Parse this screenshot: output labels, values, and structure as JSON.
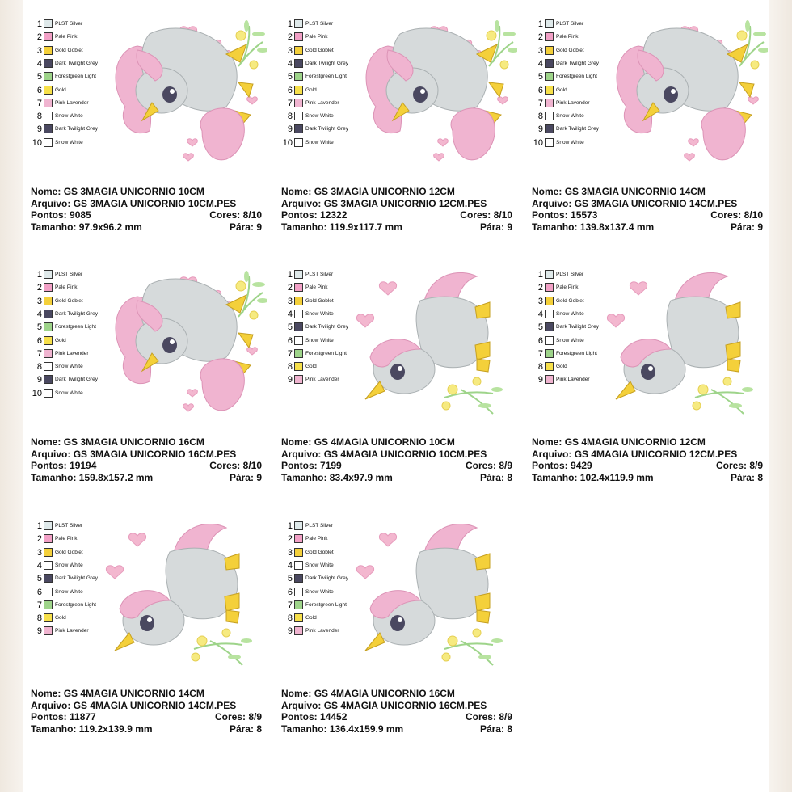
{
  "labels": {
    "nome": "Nome:",
    "arquivo": "Arquivo:",
    "pontos": "Pontos:",
    "tamanho": "Tamanho:",
    "cores": "Cores:",
    "para": "Pára:"
  },
  "colors": {
    "PLST Silver": "#dfe9ea",
    "Pale Pink": "#f2a0c6",
    "Gold Goblet": "#f4d03a",
    "Dark Twilight Grey": "#4a4860",
    "Forestgreen Light": "#9ed48a",
    "Gold": "#f7e04a",
    "Pink Lavender": "#f0b4d0",
    "Snow White": "#ffffff"
  },
  "palettes": {
    "p3": [
      "PLST Silver",
      "Pale Pink",
      "Gold Goblet",
      "Dark Twilight Grey",
      "Forestgreen Light",
      "Gold",
      "Pink Lavender",
      "Snow White",
      "Dark Twilight Grey",
      "Snow White"
    ],
    "p4": [
      "PLST Silver",
      "Pale Pink",
      "Gold Goblet",
      "Snow White",
      "Dark Twilight Grey",
      "Snow White",
      "Forestgreen Light",
      "Gold",
      "Pink Lavender"
    ]
  },
  "cards": [
    {
      "design": "unicorn-3",
      "palette": "p3",
      "nome": "GS 3MAGIA UNICORNIO 10CM",
      "arquivo": "GS 3MAGIA UNICORNIO 10CM.PES",
      "pontos": "9085",
      "cores": "8/10",
      "tamanho": "97.9x96.2 mm",
      "para": "9"
    },
    {
      "design": "unicorn-3",
      "palette": "p3",
      "nome": "GS 3MAGIA UNICORNIO 12CM",
      "arquivo": "GS 3MAGIA UNICORNIO 12CM.PES",
      "pontos": "12322",
      "cores": "8/10",
      "tamanho": "119.9x117.7 mm",
      "para": "9"
    },
    {
      "design": "unicorn-3",
      "palette": "p3",
      "nome": "GS 3MAGIA UNICORNIO 14CM",
      "arquivo": "GS 3MAGIA UNICORNIO 14CM.PES",
      "pontos": "15573",
      "cores": "8/10",
      "tamanho": "139.8x137.4 mm",
      "para": "9"
    },
    {
      "design": "unicorn-3",
      "palette": "p3",
      "nome": "GS 3MAGIA UNICORNIO 16CM",
      "arquivo": "GS 3MAGIA UNICORNIO 16CM.PES",
      "pontos": "19194",
      "cores": "8/10",
      "tamanho": "159.8x157.2 mm",
      "para": "9"
    },
    {
      "design": "unicorn-4",
      "palette": "p4",
      "nome": "GS 4MAGIA UNICORNIO 10CM",
      "arquivo": "GS 4MAGIA UNICORNIO 10CM.PES",
      "pontos": "7199",
      "cores": "8/9",
      "tamanho": "83.4x97.9 mm",
      "para": "8"
    },
    {
      "design": "unicorn-4",
      "palette": "p4",
      "nome": "GS 4MAGIA UNICORNIO 12CM",
      "arquivo": "GS 4MAGIA UNICORNIO 12CM.PES",
      "pontos": "9429",
      "cores": "8/9",
      "tamanho": "102.4x119.9 mm",
      "para": "8"
    },
    {
      "design": "unicorn-4",
      "palette": "p4",
      "nome": "GS 4MAGIA UNICORNIO 14CM",
      "arquivo": "GS 4MAGIA UNICORNIO 14CM.PES",
      "pontos": "11877",
      "cores": "8/9",
      "tamanho": "119.2x139.9 mm",
      "para": "8"
    },
    {
      "design": "unicorn-4",
      "palette": "p4",
      "nome": "GS 4MAGIA UNICORNIO 16CM",
      "arquivo": "GS 4MAGIA UNICORNIO 16CM.PES",
      "pontos": "14452",
      "cores": "8/9",
      "tamanho": "136.4x159.9 mm",
      "para": "8"
    }
  ]
}
